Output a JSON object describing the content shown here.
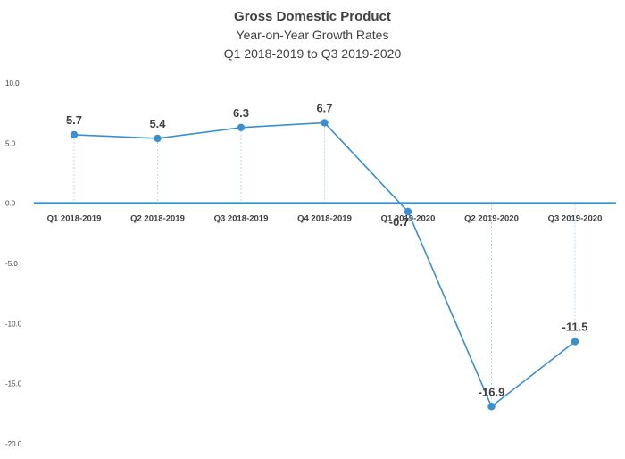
{
  "chart_data": {
    "type": "line",
    "title": "Gross Domestic Product",
    "subtitle": "Year-on-Year Growth Rates",
    "subtitle2": "Q1 2018-2019 to Q3 2019-2020",
    "categories": [
      "Q1 2018-2019",
      "Q2 2018-2019",
      "Q3 2018-2019",
      "Q4 2018-2019",
      "Q1 2019-2020",
      "Q2 2019-2020",
      "Q3 2019-2020"
    ],
    "series": [
      {
        "values": [
          5.7,
          5.4,
          6.3,
          6.7,
          -0.7,
          -16.9,
          -11.5
        ]
      }
    ],
    "data_labels": [
      "5.7",
      "5.4",
      "6.3",
      "6.7",
      "-0.7",
      "-16.9",
      "-11.5"
    ],
    "y_ticks": [
      "10.0",
      "5.0",
      "0.0",
      "-5.0",
      "-10.0",
      "-15.0",
      "-20.0"
    ],
    "ylim": [
      -20,
      10
    ],
    "grid": false,
    "legend": false,
    "colors": {
      "line": "#3a8fd0",
      "zero_axis": "#3a8fd0",
      "drop_lines": "#b8d4ec",
      "text": "#404040"
    }
  }
}
